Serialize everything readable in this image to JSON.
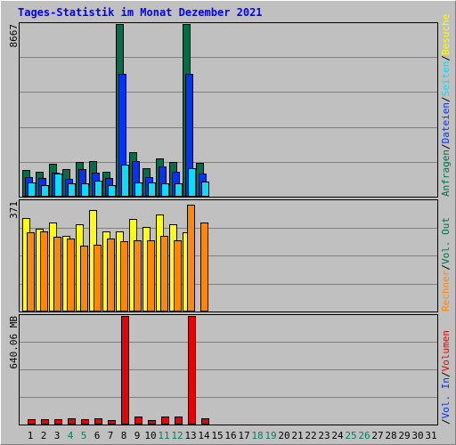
{
  "chart_data": {
    "type": "bar",
    "title": "Tages-Statistik im Monat Dezember 2021",
    "days": [
      "1",
      "2",
      "3",
      "4",
      "5",
      "6",
      "7",
      "8",
      "9",
      "10",
      "11",
      "12",
      "13",
      "14",
      "15",
      "16",
      "17",
      "18",
      "19",
      "20",
      "21",
      "22",
      "23",
      "24",
      "25",
      "26",
      "27",
      "28",
      "29",
      "30",
      "31"
    ],
    "weekend_days": [
      "4",
      "5",
      "11",
      "12",
      "18",
      "19",
      "25",
      "26"
    ],
    "panels": [
      {
        "label": "8667",
        "max": 8667,
        "series": [
          {
            "name": "Anfragen",
            "color": "#006F4A",
            "values": [
              1350,
              1250,
              1650,
              1400,
              1750,
              1800,
              1250,
              8667,
              2250,
              1450,
              1900,
              1750,
              8667,
              1700,
              0,
              0,
              0,
              0,
              0,
              0,
              0,
              0,
              0,
              0,
              0,
              0,
              0,
              0,
              0,
              0,
              0
            ]
          },
          {
            "name": "Dateien",
            "color": "#0033FF",
            "values": [
              1000,
              950,
              1200,
              900,
              1400,
              1200,
              950,
              6150,
              1800,
              1000,
              1500,
              1250,
              6150,
              1150,
              0,
              0,
              0,
              0,
              0,
              0,
              0,
              0,
              0,
              0,
              0,
              0,
              0,
              0,
              0,
              0,
              0
            ]
          },
          {
            "name": "Seiten",
            "color": "#00E0FF",
            "values": [
              700,
              600,
              1150,
              650,
              650,
              800,
              600,
              1600,
              700,
              700,
              650,
              650,
              1450,
              750,
              0,
              0,
              0,
              0,
              0,
              0,
              0,
              0,
              0,
              0,
              0,
              0,
              0,
              0,
              0,
              0,
              0
            ]
          }
        ]
      },
      {
        "label": "371",
        "max": 371,
        "series": [
          {
            "name": "Besuche",
            "color": "#FFFF00",
            "values": [
              315,
              278,
              300,
              255,
              293,
              340,
              270,
              270,
              310,
              283,
              327,
              293,
              265,
              0,
              0,
              0,
              0,
              0,
              0,
              0,
              0,
              0,
              0,
              0,
              0,
              0,
              0,
              0,
              0,
              0,
              0
            ]
          },
          {
            "name": "Rechner",
            "color": "#FF8800",
            "values": [
              265,
              270,
              250,
              245,
              220,
              225,
              245,
              235,
              240,
              240,
              255,
              240,
              360,
              300,
              0,
              0,
              0,
              0,
              0,
              0,
              0,
              0,
              0,
              0,
              0,
              0,
              0,
              0,
              0,
              0,
              0
            ]
          }
        ]
      },
      {
        "label": "640.06 MB",
        "max": 640.06,
        "series": [
          {
            "name": "Volumen",
            "color": "#EE0000",
            "values": [
              32,
              32,
              32,
              35,
              32,
              38,
              25,
              640.06,
              45,
              28,
              48,
              48,
              640.06,
              38,
              0,
              0,
              0,
              0,
              0,
              0,
              0,
              0,
              0,
              0,
              0,
              0,
              0,
              0,
              0,
              0,
              0
            ]
          }
        ]
      }
    ],
    "side_legends": [
      [
        {
          "text": "Anfragen",
          "color": "#006F4A"
        },
        {
          "text": "/",
          "color": "#000000"
        },
        {
          "text": "Dateien",
          "color": "#0033FF"
        },
        {
          "text": "/",
          "color": "#000000"
        },
        {
          "text": "Seiten",
          "color": "#00E0FF"
        },
        {
          "text": "/",
          "color": "#000000"
        },
        {
          "text": "Besuche",
          "color": "#FFFF00"
        }
      ],
      [
        {
          "text": "Rechner",
          "color": "#FF8800"
        },
        {
          "text": "/",
          "color": "#000000"
        },
        {
          "text": "Vol. Out",
          "color": "#006F4A"
        }
      ],
      [
        {
          "text": "/",
          "color": "#000000"
        },
        {
          "text": "Vol. In",
          "color": "#0033FF"
        },
        {
          "text": "/",
          "color": "#000000"
        },
        {
          "text": "Volumen",
          "color": "#EE0000"
        }
      ]
    ]
  }
}
